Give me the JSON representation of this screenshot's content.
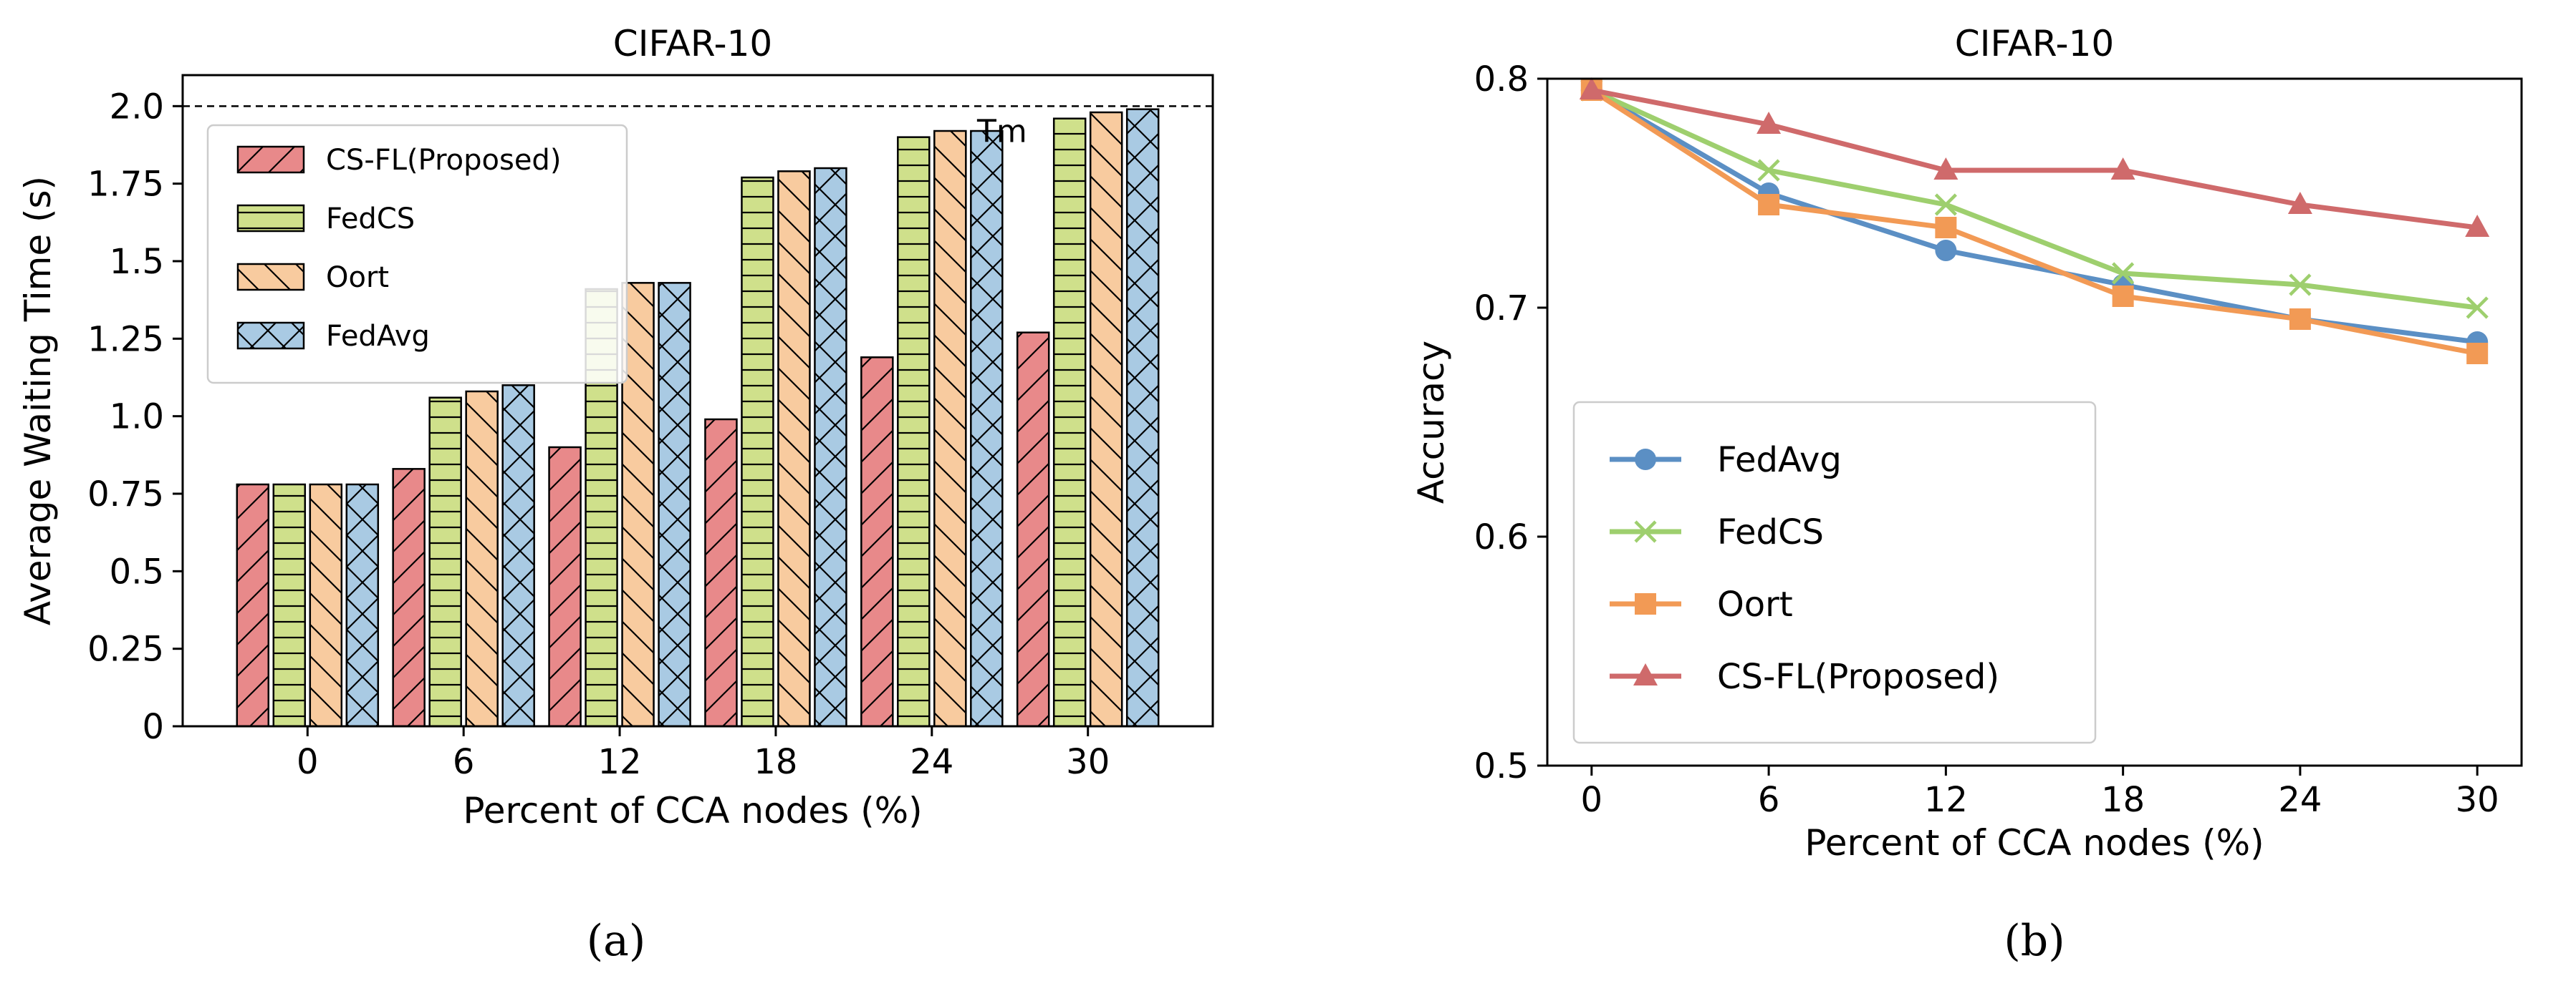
{
  "chart_data": [
    {
      "type": "bar",
      "title": "CIFAR-10",
      "xlabel": "Percent of CCA nodes (%)",
      "ylabel": "Average Waiting Time (s)",
      "categories": [
        "0",
        "6",
        "12",
        "18",
        "24",
        "30"
      ],
      "ylim": [
        0,
        2.1
      ],
      "yticks": [
        0,
        0.25,
        0.5,
        0.75,
        1.0,
        1.25,
        1.5,
        1.75,
        2.0
      ],
      "ytick_labels": [
        "0",
        "0.25",
        "0.5",
        "0.75",
        "1.0",
        "1.25",
        "1.5",
        "1.75",
        "2.0"
      ],
      "reference_line": {
        "value": 2.0,
        "label": "Tm"
      },
      "legend_position": "upper-left",
      "series": [
        {
          "name": "CS-FL(Proposed)",
          "color": "#e8898a",
          "hatch": "diagonal",
          "values": [
            0.78,
            0.83,
            0.9,
            0.99,
            1.19,
            1.27
          ]
        },
        {
          "name": "FedCS",
          "color": "#cfe08b",
          "hatch": "grid",
          "values": [
            0.78,
            1.06,
            1.41,
            1.77,
            1.9,
            1.96
          ]
        },
        {
          "name": "Oort",
          "color": "#f8cb9f",
          "hatch": "backslash",
          "values": [
            0.78,
            1.08,
            1.43,
            1.79,
            1.92,
            1.98
          ]
        },
        {
          "name": "FedAvg",
          "color": "#a9cae3",
          "hatch": "cross",
          "values": [
            0.78,
            1.1,
            1.43,
            1.8,
            1.92,
            1.99
          ]
        }
      ],
      "caption": "(a)"
    },
    {
      "type": "line",
      "title": "CIFAR-10",
      "xlabel": "Percent of CCA nodes (%)",
      "ylabel": "Accuracy",
      "x": [
        0,
        6,
        12,
        18,
        24,
        30
      ],
      "xtick_labels": [
        "0",
        "6",
        "12",
        "18",
        "24",
        "30"
      ],
      "xlim": [
        -1.5,
        31.5
      ],
      "ylim": [
        0.5,
        0.8
      ],
      "yticks": [
        0.5,
        0.6,
        0.7,
        0.8
      ],
      "ytick_labels": [
        "0.5",
        "0.6",
        "0.7",
        "0.8"
      ],
      "legend_position": "lower-left",
      "series": [
        {
          "name": "FedAvg",
          "color": "#5b8fc4",
          "marker": "circle",
          "values": [
            0.795,
            0.75,
            0.725,
            0.71,
            0.695,
            0.685
          ]
        },
        {
          "name": "FedCS",
          "color": "#9ecf6e",
          "marker": "x",
          "values": [
            0.795,
            0.76,
            0.745,
            0.715,
            0.71,
            0.7
          ]
        },
        {
          "name": "Oort",
          "color": "#f29a55",
          "marker": "square",
          "values": [
            0.795,
            0.745,
            0.735,
            0.705,
            0.695,
            0.68
          ]
        },
        {
          "name": "CS-FL(Proposed)",
          "color": "#cf6a6b",
          "marker": "triangle",
          "values": [
            0.795,
            0.78,
            0.76,
            0.76,
            0.745,
            0.735
          ]
        }
      ],
      "caption": "(b)"
    }
  ]
}
